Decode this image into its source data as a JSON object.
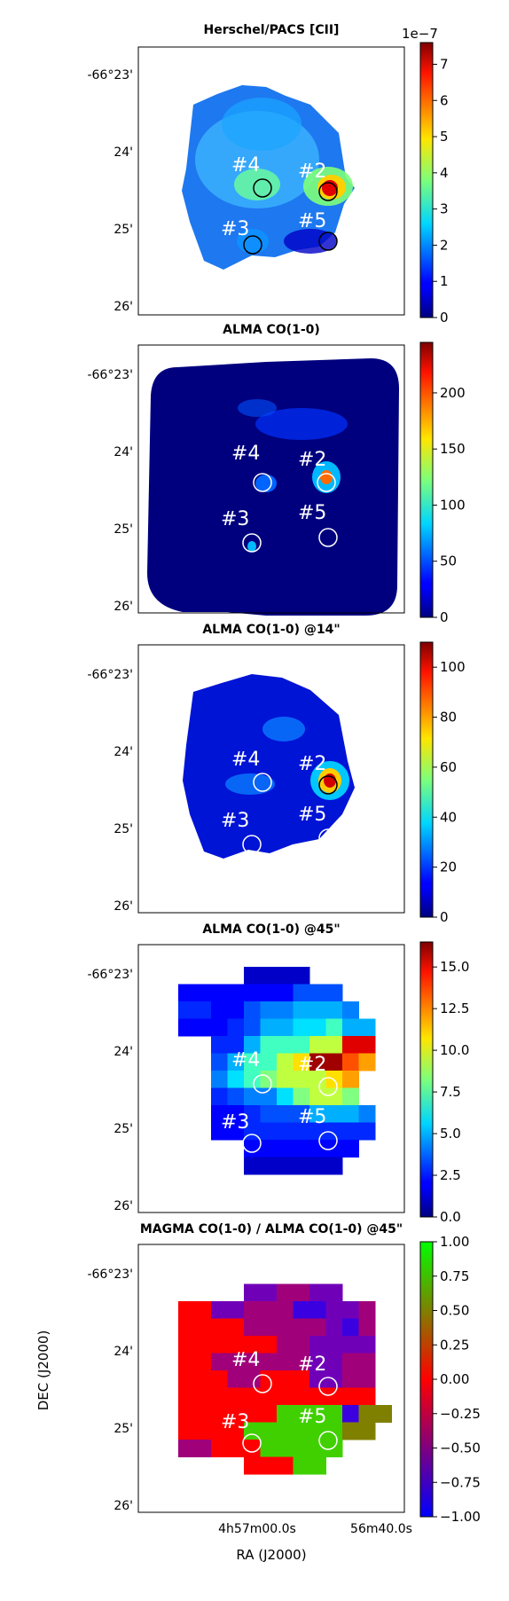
{
  "figure": {
    "xlabel": "RA (J2000)",
    "ylabel": "DEC (J2000)",
    "ra_ticks": [
      "4h57m00.0s",
      "56m40.0s"
    ],
    "dec_ticks": [
      "-66°23'",
      "24'",
      "25'",
      "26'"
    ]
  },
  "sources": [
    "#2",
    "#3",
    "#4",
    "#5"
  ],
  "chart_data": [
    {
      "type": "heatmap",
      "title": "Herschel/PACS [CII]",
      "colormap": "jet",
      "colorbar": {
        "range": [
          0,
          7.6
        ],
        "ticks": [
          "0",
          "1",
          "2",
          "3",
          "4",
          "5",
          "6",
          "7"
        ],
        "offset_label": "1e−7"
      },
      "peak_source": "#2"
    },
    {
      "type": "heatmap",
      "title": "ALMA CO(1-0)",
      "colormap": "jet",
      "colorbar": {
        "range": [
          0,
          245
        ],
        "ticks": [
          "0",
          "50",
          "100",
          "150",
          "200"
        ],
        "offset_label": ""
      },
      "peak_source": "#2"
    },
    {
      "type": "heatmap",
      "title": "ALMA CO(1-0) @14\"",
      "colormap": "jet",
      "colorbar": {
        "range": [
          0,
          110
        ],
        "ticks": [
          "0",
          "20",
          "40",
          "60",
          "80",
          "100"
        ],
        "offset_label": ""
      },
      "peak_source": "#2"
    },
    {
      "type": "heatmap",
      "title": "ALMA CO(1-0) @45\"",
      "colormap": "jet",
      "colorbar": {
        "range": [
          0,
          16.5
        ],
        "ticks": [
          "0.0",
          "2.5",
          "5.0",
          "7.5",
          "10.0",
          "12.5",
          "15.0"
        ],
        "offset_label": ""
      },
      "peak_source": "#2"
    },
    {
      "type": "heatmap",
      "title": "MAGMA CO(1-0) / ALMA CO(1-0) @45\"",
      "colormap": "brg",
      "colorbar": {
        "range": [
          -1,
          1
        ],
        "ticks": [
          "−1.00",
          "−0.75",
          "−0.50",
          "−0.25",
          "0.00",
          "0.25",
          "0.50",
          "0.75",
          "1.00"
        ],
        "offset_label": ""
      }
    }
  ]
}
